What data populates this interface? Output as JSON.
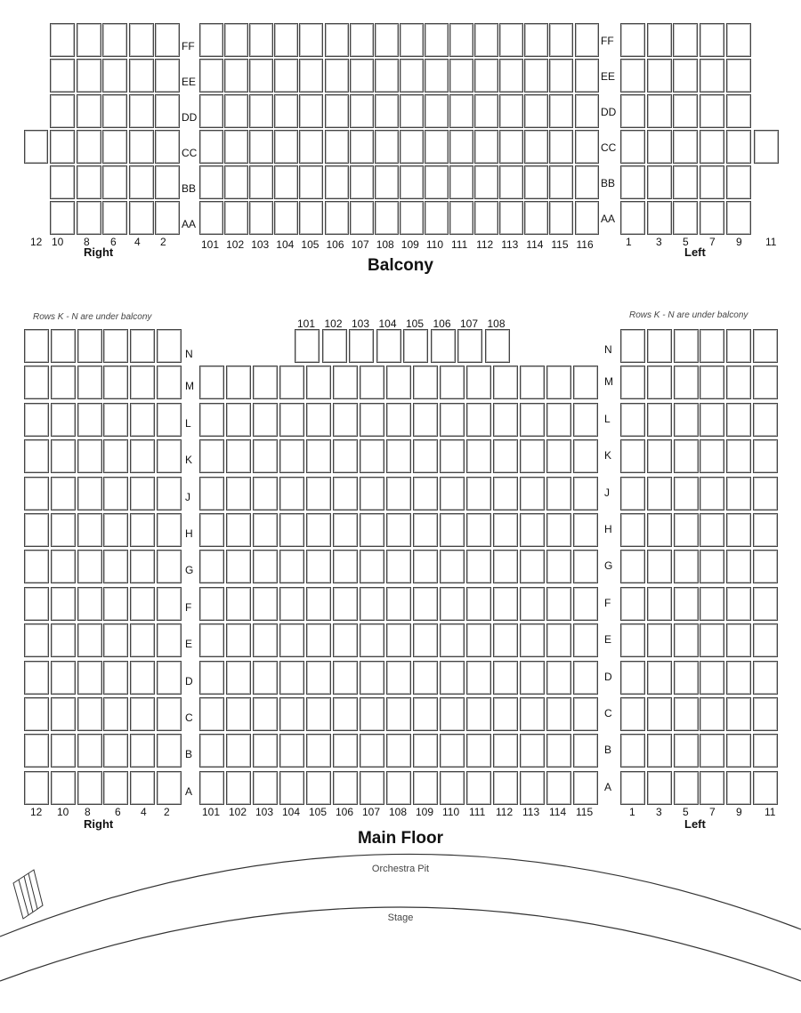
{
  "balcony": {
    "title": "Balcony",
    "rows": [
      "FF",
      "EE",
      "DD",
      "CC",
      "BB",
      "AA"
    ],
    "right_label": "Right",
    "left_label": "Left",
    "right_seat_numbers": [
      "12",
      "10",
      "8",
      "6",
      "4",
      "2"
    ],
    "center_seat_numbers": [
      "101",
      "102",
      "103",
      "104",
      "105",
      "106",
      "107",
      "108",
      "109",
      "110",
      "111",
      "112",
      "113",
      "114",
      "115",
      "116"
    ],
    "left_seat_numbers": [
      "1",
      "3",
      "5",
      "7",
      "9",
      "11"
    ]
  },
  "main_floor": {
    "title": "Main Floor",
    "rows": [
      "N",
      "M",
      "L",
      "K",
      "J",
      "H",
      "G",
      "F",
      "E",
      "D",
      "C",
      "B",
      "A"
    ],
    "right_note": "Rows K - N are under balcony",
    "left_note": "Rows K - N are under balcony",
    "right_label": "Right",
    "left_label": "Left",
    "right_seat_numbers": [
      "12",
      "10",
      "8",
      "6",
      "4",
      "2"
    ],
    "center_seat_numbers": [
      "101",
      "102",
      "103",
      "104",
      "105",
      "106",
      "107",
      "108",
      "109",
      "110",
      "111",
      "112",
      "113",
      "114",
      "115"
    ],
    "row_n_center_seat_numbers": [
      "101",
      "102",
      "103",
      "104",
      "105",
      "106",
      "107",
      "108"
    ],
    "left_seat_numbers": [
      "1",
      "3",
      "5",
      "7",
      "9",
      "11"
    ]
  },
  "stage": {
    "orchestra_pit_label": "Orchestra Pit",
    "stage_label": "Stage"
  }
}
